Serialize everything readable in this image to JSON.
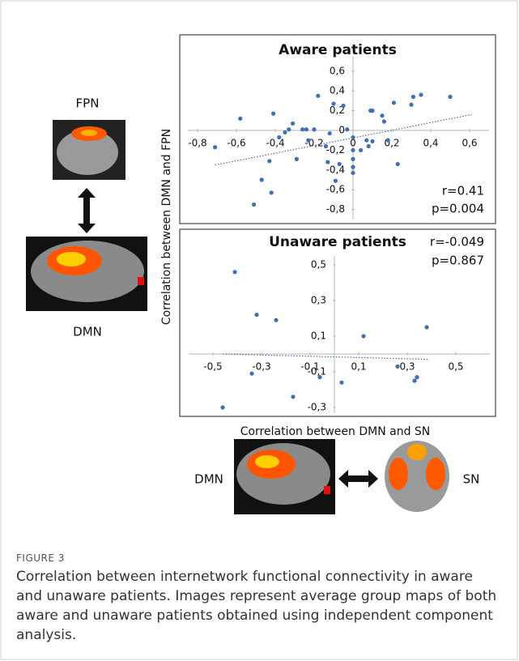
{
  "figure": {
    "fpn_label": "FPN",
    "dmn_label_left": "DMN",
    "dmn_label_bottom": "DMN",
    "sn_label": "SN",
    "y_axis_label": "Correlation between DMN and FPN",
    "x_axis_label": "Correlation between DMN and SN"
  },
  "chart_data": [
    {
      "type": "scatter",
      "title": "Aware patients",
      "color": "#3f6fb5",
      "x": [
        -0.71,
        -0.58,
        -0.41,
        -0.38,
        -0.35,
        -0.33,
        -0.31,
        -0.29,
        -0.47,
        -0.51,
        -0.42,
        -0.43,
        -0.26,
        -0.24,
        -0.23,
        -0.2,
        -0.18,
        -0.14,
        -0.12,
        -0.1,
        -0.09,
        -0.07,
        -0.13,
        -0.05,
        -0.03,
        0,
        0,
        0,
        0,
        0,
        0.04,
        0.07,
        0.08,
        0.1,
        0.09,
        0.1,
        0.16,
        0.15,
        0.18,
        0.23,
        0.21,
        0.3,
        0.31,
        0.35,
        0.5
      ],
      "values": [
        -0.17,
        0.12,
        0.17,
        -0.07,
        -0.02,
        0.01,
        0.07,
        -0.29,
        -0.5,
        -0.75,
        -0.63,
        -0.31,
        0.01,
        0.01,
        -0.1,
        0.01,
        0.35,
        -0.16,
        -0.03,
        0.27,
        -0.51,
        -0.34,
        -0.32,
        0.25,
        0.01,
        -0.07,
        -0.2,
        -0.29,
        -0.37,
        -0.43,
        -0.2,
        -0.1,
        -0.16,
        -0.11,
        0.2,
        0.2,
        0.09,
        0.15,
        -0.1,
        -0.34,
        0.28,
        0.26,
        0.34,
        0.36,
        0.34
      ],
      "trendline": {
        "x": [
          -0.71,
          0.61
        ],
        "values": [
          -0.35,
          0.16
        ]
      },
      "annotations": [
        "r=0.41",
        "p=0.004"
      ],
      "xlim": [
        -0.85,
        0.7
      ],
      "ylim": [
        -0.9,
        0.75
      ],
      "xticks": [
        {
          "value": -0.8,
          "label": "-0,8"
        },
        {
          "value": -0.6,
          "label": "-0,6"
        },
        {
          "value": -0.4,
          "label": "-0,4"
        },
        {
          "value": -0.2,
          "label": "-0,2"
        },
        0,
        {
          "value": 0.2,
          "label": "0,2"
        },
        {
          "value": 0.4,
          "label": "0,4"
        },
        {
          "value": 0.6,
          "label": "0,6"
        }
      ],
      "yticks": [
        {
          "value": 0.6,
          "label": "0,6"
        },
        {
          "value": 0.4,
          "label": "0,4"
        },
        {
          "value": 0.2,
          "label": "0,2"
        },
        0,
        {
          "value": -0.2,
          "label": "-0,2"
        },
        {
          "value": -0.4,
          "label": "-0,4"
        },
        {
          "value": -0.6,
          "label": "-0,6"
        },
        {
          "value": -0.8,
          "label": "-0,8"
        }
      ]
    },
    {
      "type": "scatter",
      "title": "Unaware patients",
      "color": "#3f6fb5",
      "x": [
        -0.41,
        -0.32,
        -0.24,
        0.12,
        0.38,
        -0.34,
        -0.17,
        -0.46,
        -0.06,
        0.03,
        0.26,
        0.33,
        0.34
      ],
      "values": [
        0.46,
        0.22,
        0.19,
        0.1,
        0.15,
        -0.11,
        -0.24,
        -0.3,
        -0.13,
        -0.16,
        -0.07,
        -0.15,
        -0.13
      ],
      "trendline": {
        "x": [
          -0.46,
          0.39
        ],
        "values": [
          0.0,
          -0.03
        ]
      },
      "annotations": [
        "r=-0.049",
        "p=0.867"
      ],
      "xlim": [
        -0.6,
        0.64
      ],
      "ylim": [
        -0.33,
        0.55
      ],
      "xticks": [
        {
          "value": -0.5,
          "label": "-0,5"
        },
        {
          "value": -0.3,
          "label": "-0,3"
        },
        {
          "value": -0.1,
          "label": "-0,1"
        },
        {
          "value": 0.1,
          "label": "0,1"
        },
        {
          "value": 0.3,
          "label": "0,3"
        },
        {
          "value": 0.5,
          "label": "0,5"
        }
      ],
      "yticks": [
        {
          "value": 0.5,
          "label": "0,5"
        },
        {
          "value": 0.3,
          "label": "0,3"
        },
        {
          "value": 0.1,
          "label": "0,1"
        },
        {
          "value": -0.1,
          "label": "-0,1"
        },
        {
          "value": -0.3,
          "label": "-0,3"
        }
      ]
    }
  ],
  "caption": {
    "label": "FIGURE 3",
    "text": "Correlation between internetwork functional connectivity in aware and unaware patients. Images represent average group maps of both aware and unaware patients obtained using independent component analysis."
  }
}
